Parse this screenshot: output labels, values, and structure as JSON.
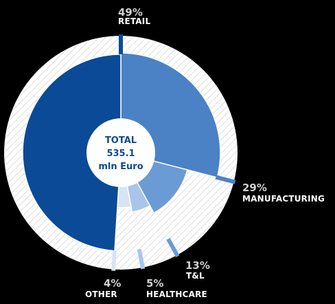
{
  "chart_data": {
    "type": "pie",
    "variant": "donut",
    "total": {
      "label": "TOTAL",
      "value": "535.1",
      "unit": "mln Euro"
    },
    "slices": [
      {
        "name": "RETAIL",
        "value": 49,
        "value_label": "49%",
        "color": "#0b4a96"
      },
      {
        "name": "MANUFACTURING",
        "value": 29,
        "value_label": "29%",
        "color": "#4a82c5"
      },
      {
        "name": "T&L",
        "value": 13,
        "value_label": "13%",
        "color": "#6b9bd4"
      },
      {
        "name": "HEALTHCARE",
        "value": 5,
        "value_label": "5%",
        "color": "#a9c5ea"
      },
      {
        "name": "OTHER",
        "value": 4,
        "value_label": "4%",
        "color": "#d6e4f5"
      }
    ],
    "legend": "none",
    "labels": "outside-slices",
    "colors": {
      "background": "#000000",
      "ring": "#ffffff",
      "hatch": "#c8c8c8",
      "center_text": "#0b4a96",
      "label_pct": "#d0d0d0",
      "label_name": "#ffffff"
    }
  }
}
